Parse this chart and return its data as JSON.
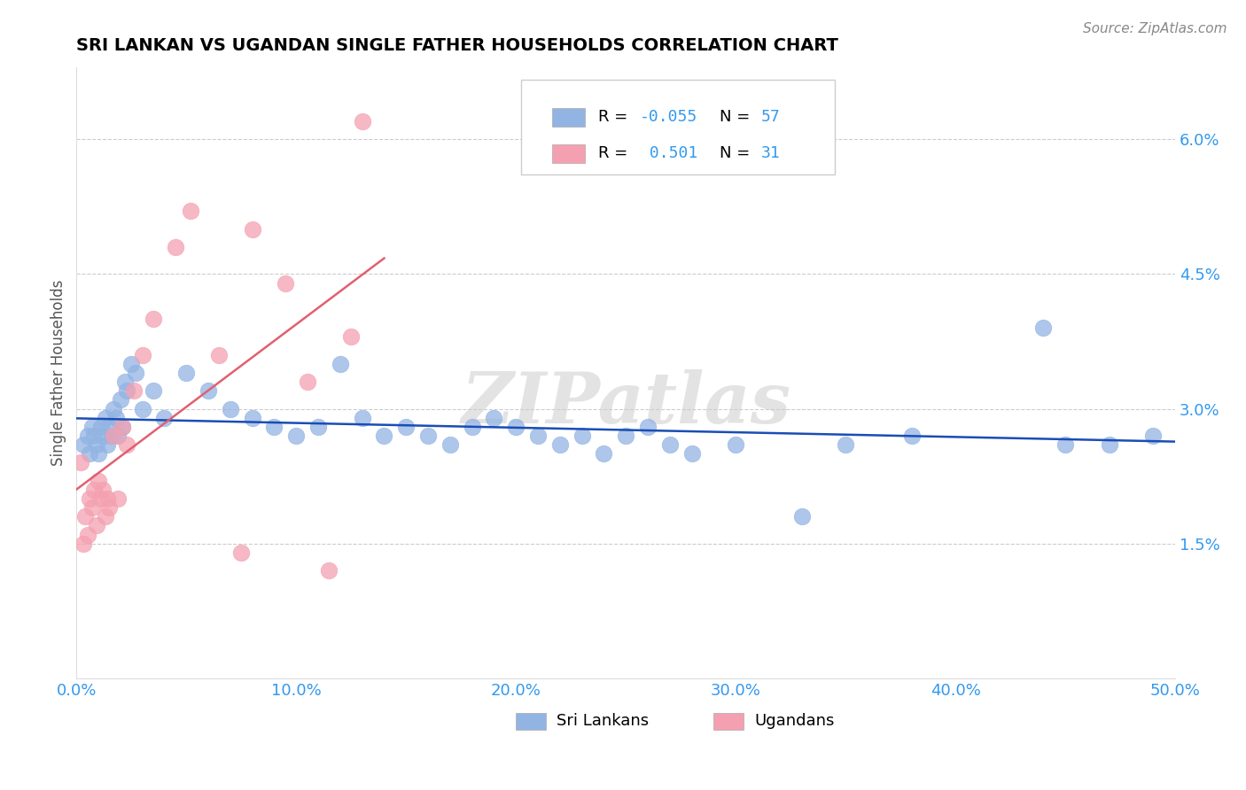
{
  "title": "SRI LANKAN VS UGANDAN SINGLE FATHER HOUSEHOLDS CORRELATION CHART",
  "source": "Source: ZipAtlas.com",
  "ylabel": "Single Father Households",
  "x_tick_labels": [
    "0.0%",
    "10.0%",
    "20.0%",
    "30.0%",
    "40.0%",
    "50.0%"
  ],
  "x_tick_values": [
    0.0,
    10.0,
    20.0,
    30.0,
    40.0,
    50.0
  ],
  "y_tick_labels": [
    "1.5%",
    "3.0%",
    "4.5%",
    "6.0%"
  ],
  "y_tick_values": [
    1.5,
    3.0,
    4.5,
    6.0
  ],
  "xlim": [
    0.0,
    50.0
  ],
  "ylim": [
    0.0,
    6.8
  ],
  "r1": "-0.055",
  "n1": "57",
  "r2": "0.501",
  "n2": "31",
  "label1": "Sri Lankans",
  "label2": "Ugandans",
  "blue_color": "#92b4e3",
  "pink_color": "#f4a0b0",
  "blue_line_color": "#1a4db5",
  "pink_line_color": "#e06070",
  "watermark": "ZIPatlas",
  "sri_lankan_x": [
    0.3,
    0.5,
    0.6,
    0.7,
    0.8,
    0.9,
    1.0,
    1.1,
    1.2,
    1.3,
    1.4,
    1.5,
    1.6,
    1.7,
    1.8,
    1.9,
    2.0,
    2.1,
    2.2,
    2.3,
    2.5,
    2.7,
    3.0,
    3.5,
    4.0,
    5.0,
    6.0,
    7.0,
    8.0,
    9.0,
    10.0,
    11.0,
    12.0,
    13.0,
    14.0,
    15.0,
    16.0,
    17.0,
    18.0,
    19.0,
    20.0,
    21.0,
    22.0,
    23.0,
    24.0,
    25.0,
    26.0,
    27.0,
    28.0,
    30.0,
    33.0,
    35.0,
    38.0,
    44.0,
    45.0,
    47.0,
    49.0
  ],
  "sri_lankan_y": [
    2.6,
    2.7,
    2.5,
    2.8,
    2.7,
    2.6,
    2.5,
    2.8,
    2.7,
    2.9,
    2.6,
    2.8,
    2.7,
    3.0,
    2.9,
    2.7,
    3.1,
    2.8,
    3.3,
    3.2,
    3.5,
    3.4,
    3.0,
    3.2,
    2.9,
    3.4,
    3.2,
    3.0,
    2.9,
    2.8,
    2.7,
    2.8,
    3.5,
    2.9,
    2.7,
    2.8,
    2.7,
    2.6,
    2.8,
    2.9,
    2.8,
    2.7,
    2.6,
    2.7,
    2.5,
    2.7,
    2.8,
    2.6,
    2.5,
    2.6,
    1.8,
    2.6,
    2.7,
    3.9,
    2.6,
    2.6,
    2.7
  ],
  "ugandan_x": [
    0.2,
    0.3,
    0.4,
    0.5,
    0.6,
    0.7,
    0.8,
    0.9,
    1.0,
    1.1,
    1.2,
    1.3,
    1.4,
    1.5,
    1.7,
    1.9,
    2.1,
    2.3,
    2.6,
    3.0,
    3.5,
    4.5,
    5.2,
    6.5,
    7.5,
    8.0,
    9.5,
    10.5,
    11.5,
    12.5,
    13.0
  ],
  "ugandan_y": [
    2.4,
    1.5,
    1.8,
    1.6,
    2.0,
    1.9,
    2.1,
    1.7,
    2.2,
    2.0,
    2.1,
    1.8,
    2.0,
    1.9,
    2.7,
    2.0,
    2.8,
    2.6,
    3.2,
    3.6,
    4.0,
    4.8,
    5.2,
    3.6,
    1.4,
    5.0,
    4.4,
    3.3,
    1.2,
    3.8,
    6.2
  ]
}
